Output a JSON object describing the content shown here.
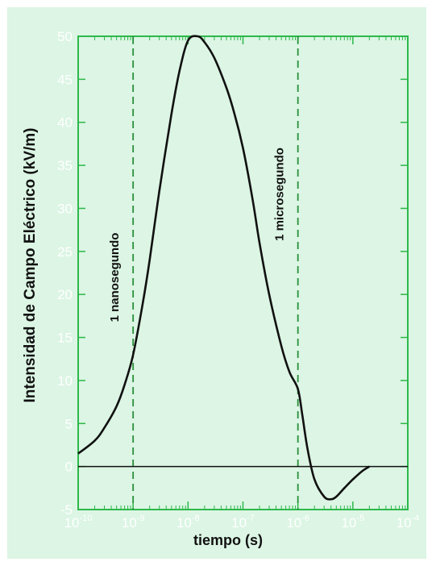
{
  "chart_data": {
    "type": "line",
    "title": "",
    "xlabel": "tiempo (s)",
    "ylabel": "Intensidad de Campo Eléctrico (kV/m)",
    "x_scale": "log",
    "xlim": [
      1e-10,
      0.0001
    ],
    "ylim": [
      -5,
      50
    ],
    "x_tick_values": [
      1e-10,
      1e-09,
      1e-08,
      1e-07,
      1e-06,
      1e-05,
      0.0001
    ],
    "x_tick_labels": [
      {
        "base": "10",
        "exp": "-10"
      },
      {
        "base": "10",
        "exp": "-9"
      },
      {
        "base": "10",
        "exp": "-8"
      },
      {
        "base": "10",
        "exp": "-7"
      },
      {
        "base": "10",
        "exp": "-6"
      },
      {
        "base": "10",
        "exp": "-5"
      },
      {
        "base": "10",
        "exp": "-4"
      }
    ],
    "y_ticks": [
      -5,
      0,
      5,
      10,
      15,
      20,
      25,
      30,
      35,
      40,
      45,
      50
    ],
    "y_tick_labels": [
      "-5",
      "0",
      "5",
      "10",
      "15",
      "20",
      "25",
      "30",
      "35",
      "40",
      "45",
      "50"
    ],
    "series": [
      {
        "x": [
          1e-10,
          2e-10,
          3e-10,
          5e-10,
          7e-10,
          1e-09,
          1.5e-09,
          2e-09,
          3e-09,
          5e-09,
          7e-09,
          1e-08,
          1.5e-08,
          2e-08,
          3e-08,
          5e-08,
          7e-08,
          1e-07,
          1.5e-07,
          2e-07,
          3e-07,
          5e-07,
          7e-07,
          1e-06,
          1.2e-06,
          1.5e-06,
          2e-06,
          3e-06,
          4e-06,
          5e-06,
          7e-06,
          1e-05,
          1.5e-05,
          2e-05
        ],
        "y": [
          1.5,
          3,
          4.5,
          7,
          9.5,
          13,
          19,
          24,
          32,
          41,
          46,
          49.5,
          50,
          49.3,
          47.5,
          44,
          41,
          37,
          31,
          26,
          20,
          14,
          11,
          9,
          6,
          2,
          -1.5,
          -3.5,
          -3.8,
          -3.5,
          -2.5,
          -1.5,
          -0.5,
          0
        ]
      }
    ],
    "reference_lines": [
      {
        "x": 1e-09,
        "label": "1 nanosegundo"
      },
      {
        "x": 1e-06,
        "label": "1 microsegundo"
      }
    ],
    "zero_line": 0,
    "grid": false,
    "colors": {
      "background": "#dcf5e4",
      "axes": "#2db84a",
      "curve": "#111111",
      "ticklabels": "#ffffff",
      "text": "#111111"
    }
  }
}
